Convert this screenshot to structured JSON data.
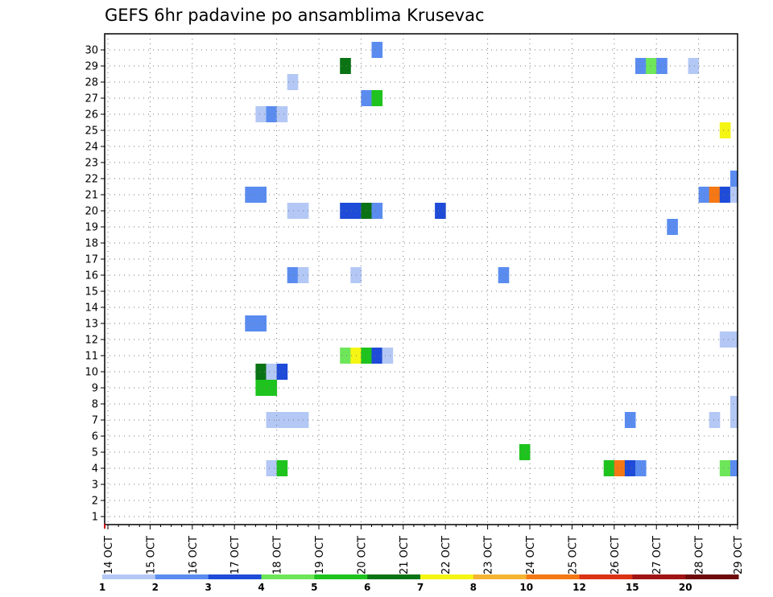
{
  "chart_data": {
    "type": "heatmap",
    "title": "GEFS 6hr padavine po ansamblima Krusevac",
    "xlabel": "",
    "ylabel": "",
    "x_tick_labels": [
      "14 OCT",
      "15 OCT",
      "16 OCT",
      "17 OCT",
      "18 OCT",
      "19 OCT",
      "20 OCT",
      "21 OCT",
      "22 OCT",
      "23 OCT",
      "24 OCT",
      "25 OCT",
      "26 OCT",
      "27 OCT",
      "28 OCT",
      "29 OCT"
    ],
    "x_range_days": [
      14,
      29
    ],
    "y_tick_labels": [
      1,
      2,
      3,
      4,
      5,
      6,
      7,
      8,
      9,
      10,
      11,
      12,
      13,
      14,
      15,
      16,
      17,
      18,
      19,
      20,
      21,
      22,
      23,
      24,
      25,
      26,
      27,
      28,
      29,
      30
    ],
    "y_range": [
      0,
      30
    ],
    "grid": true,
    "colorbar": {
      "levels": [
        1,
        2,
        3,
        4,
        5,
        6,
        7,
        8,
        10,
        12,
        15,
        20
      ],
      "labels": [
        "1",
        "2",
        "3",
        "4",
        "5",
        "6",
        "7",
        "8",
        "10",
        "12",
        "15",
        "20"
      ],
      "colors": [
        "#b4c8f5",
        "#5a8cf0",
        "#1e4bd7",
        "#6ee65a",
        "#1ec31e",
        "#0a7314",
        "#f5f514",
        "#f5b432",
        "#f57814",
        "#dc3214",
        "#a01414",
        "#6e0a0a"
      ]
    },
    "cells_note": "Each cell: member (y), valid time in days of October (x), precipitation class color",
    "cells": [
      {
        "m": 30,
        "t": 20.25,
        "c": 1
      },
      {
        "m": 29,
        "t": 19.5,
        "c": 5
      },
      {
        "m": 29,
        "t": 26.5,
        "c": 1
      },
      {
        "m": 29,
        "t": 26.75,
        "c": 3
      },
      {
        "m": 29,
        "t": 27.0,
        "c": 1
      },
      {
        "m": 29,
        "t": 27.75,
        "c": 0
      },
      {
        "m": 28,
        "t": 18.25,
        "c": 0
      },
      {
        "m": 27,
        "t": 20.0,
        "c": 1
      },
      {
        "m": 27,
        "t": 20.25,
        "c": 4
      },
      {
        "m": 26,
        "t": 17.5,
        "c": 0
      },
      {
        "m": 26,
        "t": 17.75,
        "c": 1
      },
      {
        "m": 26,
        "t": 18.0,
        "c": 0
      },
      {
        "m": 25,
        "t": 28.5,
        "c": 6
      },
      {
        "m": 22,
        "t": 28.75,
        "c": 1
      },
      {
        "m": 21,
        "t": 17.25,
        "c": 1
      },
      {
        "m": 21,
        "t": 17.5,
        "c": 1
      },
      {
        "m": 21,
        "t": 28.0,
        "c": 1
      },
      {
        "m": 21,
        "t": 28.25,
        "c": 8
      },
      {
        "m": 21,
        "t": 28.5,
        "c": 2
      },
      {
        "m": 21,
        "t": 28.75,
        "c": 0
      },
      {
        "m": 20,
        "t": 18.25,
        "c": 0
      },
      {
        "m": 20,
        "t": 18.5,
        "c": 0
      },
      {
        "m": 20,
        "t": 19.5,
        "c": 2
      },
      {
        "m": 20,
        "t": 19.75,
        "c": 2
      },
      {
        "m": 20,
        "t": 20.0,
        "c": 5
      },
      {
        "m": 20,
        "t": 20.25,
        "c": 1
      },
      {
        "m": 20,
        "t": 21.75,
        "c": 2
      },
      {
        "m": 19,
        "t": 27.25,
        "c": 1
      },
      {
        "m": 16,
        "t": 18.25,
        "c": 1
      },
      {
        "m": 16,
        "t": 18.5,
        "c": 0
      },
      {
        "m": 16,
        "t": 19.75,
        "c": 0
      },
      {
        "m": 16,
        "t": 23.25,
        "c": 1
      },
      {
        "m": 13,
        "t": 17.25,
        "c": 1
      },
      {
        "m": 13,
        "t": 17.5,
        "c": 1
      },
      {
        "m": 12,
        "t": 28.5,
        "c": 0
      },
      {
        "m": 12,
        "t": 28.75,
        "c": 0
      },
      {
        "m": 11,
        "t": 19.5,
        "c": 3
      },
      {
        "m": 11,
        "t": 19.75,
        "c": 6
      },
      {
        "m": 11,
        "t": 20.0,
        "c": 4
      },
      {
        "m": 11,
        "t": 20.25,
        "c": 2
      },
      {
        "m": 11,
        "t": 20.5,
        "c": 0
      },
      {
        "m": 10,
        "t": 17.5,
        "c": 5
      },
      {
        "m": 10,
        "t": 17.75,
        "c": 0
      },
      {
        "m": 10,
        "t": 18.0,
        "c": 2
      },
      {
        "m": 9,
        "t": 17.5,
        "c": 4
      },
      {
        "m": 9,
        "t": 17.75,
        "c": 4
      },
      {
        "m": 8,
        "t": 28.75,
        "c": 0
      },
      {
        "m": 7,
        "t": 17.75,
        "c": 0
      },
      {
        "m": 7,
        "t": 18.0,
        "c": 0
      },
      {
        "m": 7,
        "t": 18.25,
        "c": 0
      },
      {
        "m": 7,
        "t": 18.5,
        "c": 0
      },
      {
        "m": 7,
        "t": 26.25,
        "c": 1
      },
      {
        "m": 7,
        "t": 28.25,
        "c": 0
      },
      {
        "m": 7,
        "t": 28.75,
        "c": 0
      },
      {
        "m": 5,
        "t": 23.75,
        "c": 4
      },
      {
        "m": 4,
        "t": 17.75,
        "c": 0
      },
      {
        "m": 4,
        "t": 18.0,
        "c": 4
      },
      {
        "m": 4,
        "t": 25.75,
        "c": 4
      },
      {
        "m": 4,
        "t": 26.0,
        "c": 8
      },
      {
        "m": 4,
        "t": 26.25,
        "c": 2
      },
      {
        "m": 4,
        "t": 26.5,
        "c": 1
      },
      {
        "m": 4,
        "t": 28.5,
        "c": 3
      },
      {
        "m": 4,
        "t": 28.75,
        "c": 1
      }
    ]
  }
}
